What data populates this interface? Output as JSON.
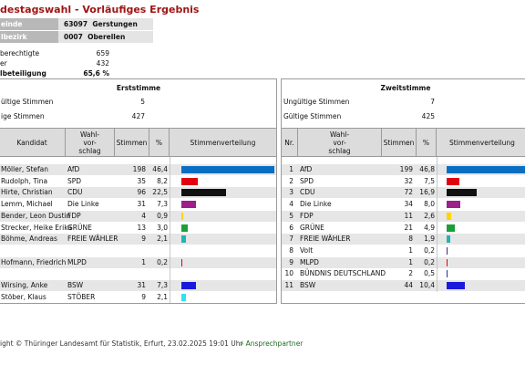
{
  "title": "destagswahl - Vorläufiges Ergebnis",
  "info": [
    {
      "label": "einde",
      "code": "63097",
      "name": "Gerstungen"
    },
    {
      "label": "lbezirk",
      "code": "0007",
      "name": "Oberellen"
    }
  ],
  "stats": [
    {
      "label": "berechtigte",
      "value": "659",
      "bold": false
    },
    {
      "label": "er",
      "value": "432",
      "bold": false
    },
    {
      "label": "lbeteiligung",
      "value": "65,6 %",
      "bold": true
    }
  ],
  "erststimme": {
    "title": "Erststimme",
    "invalid_label": "ültige Stimmen",
    "invalid_value": "5",
    "valid_label": "ige Stimmen",
    "valid_value": "427",
    "headers": {
      "kandidat": "Kandidat",
      "wahlvorschlag": [
        "Wahl-",
        "vor-",
        "schlag"
      ],
      "stimmen": "Stimmen",
      "prozent": "%",
      "verteilung": "Stimmenverteilung"
    },
    "rows": [
      {
        "kandidat": "Möller, Stefan",
        "partei": "AfD",
        "stimmen": "198",
        "prozent": "46,4",
        "pct": 46.4,
        "color": "#0a6fc2"
      },
      {
        "kandidat": "Rudolph, Tina",
        "partei": "SPD",
        "stimmen": "35",
        "prozent": "8,2",
        "pct": 8.2,
        "color": "#e3000f"
      },
      {
        "kandidat": "Hirte, Christian",
        "partei": "CDU",
        "stimmen": "96",
        "prozent": "22,5",
        "pct": 22.5,
        "color": "#111111"
      },
      {
        "kandidat": "Lemm, Michael",
        "partei": "Die Linke",
        "stimmen": "31",
        "prozent": "7,3",
        "pct": 7.3,
        "color": "#9c1f8a"
      },
      {
        "kandidat": "Bender, Leon Dustin",
        "partei": "FDP",
        "stimmen": "4",
        "prozent": "0,9",
        "pct": 0.9,
        "color": "#ffd400"
      },
      {
        "kandidat": "Strecker, Heike Erika",
        "partei": "GRÜNE",
        "stimmen": "13",
        "prozent": "3,0",
        "pct": 3.0,
        "color": "#1aa037"
      },
      {
        "kandidat": "Böhme, Andreas",
        "partei": "FREIE WÄHLER",
        "stimmen": "9",
        "prozent": "2,1",
        "pct": 2.1,
        "color": "#1fb5b0"
      },
      {
        "kandidat": "",
        "partei": "",
        "stimmen": "",
        "prozent": "",
        "pct": 0,
        "color": ""
      },
      {
        "kandidat": "Hofmann, Friedrich",
        "partei": "MLPD",
        "stimmen": "1",
        "prozent": "0,2",
        "pct": 0.2,
        "color": "#e3000f"
      },
      {
        "kandidat": "",
        "partei": "",
        "stimmen": "",
        "prozent": "",
        "pct": 0,
        "color": ""
      },
      {
        "kandidat": "Wirsing, Anke",
        "partei": "BSW",
        "stimmen": "31",
        "prozent": "7,3",
        "pct": 7.3,
        "color": "#1a1adc"
      },
      {
        "kandidat": "Stöber, Klaus",
        "partei": "STÖBER",
        "stimmen": "9",
        "prozent": "2,1",
        "pct": 2.1,
        "color": "#34e0f0"
      }
    ]
  },
  "zweitstimme": {
    "title": "Zweitstimme",
    "invalid_label": "Ungültige Stimmen",
    "invalid_value": "7",
    "valid_label": "Gültige Stimmen",
    "valid_value": "425",
    "headers": {
      "nr": "Nr.",
      "wahlvorschlag": [
        "Wahl-",
        "vor-",
        "schlag"
      ],
      "stimmen": "Stimmen",
      "prozent": "%",
      "verteilung": "Stimmenverteilung"
    },
    "rows": [
      {
        "nr": "1",
        "partei": "AfD",
        "stimmen": "199",
        "prozent": "46,8",
        "pct": 46.8,
        "color": "#0a6fc2"
      },
      {
        "nr": "2",
        "partei": "SPD",
        "stimmen": "32",
        "prozent": "7,5",
        "pct": 7.5,
        "color": "#e3000f"
      },
      {
        "nr": "3",
        "partei": "CDU",
        "stimmen": "72",
        "prozent": "16,9",
        "pct": 16.9,
        "color": "#111111"
      },
      {
        "nr": "4",
        "partei": "Die Linke",
        "stimmen": "34",
        "prozent": "8,0",
        "pct": 8.0,
        "color": "#9c1f8a"
      },
      {
        "nr": "5",
        "partei": "FDP",
        "stimmen": "11",
        "prozent": "2,6",
        "pct": 2.6,
        "color": "#ffd400"
      },
      {
        "nr": "6",
        "partei": "GRÜNE",
        "stimmen": "21",
        "prozent": "4,9",
        "pct": 4.9,
        "color": "#1aa037"
      },
      {
        "nr": "7",
        "partei": "FREIE WÄHLER",
        "stimmen": "8",
        "prozent": "1,9",
        "pct": 1.9,
        "color": "#1fb5b0"
      },
      {
        "nr": "8",
        "partei": "Volt",
        "stimmen": "1",
        "prozent": "0,2",
        "pct": 0.2,
        "color": "#502379"
      },
      {
        "nr": "9",
        "partei": "MLPD",
        "stimmen": "1",
        "prozent": "0,2",
        "pct": 0.2,
        "color": "#e3000f"
      },
      {
        "nr": "10",
        "partei": "BÜNDNIS DEUTSCHLAND",
        "stimmen": "2",
        "prozent": "0,5",
        "pct": 0.5,
        "color": "#1a3a8a"
      },
      {
        "nr": "11",
        "partei": "BSW",
        "stimmen": "44",
        "prozent": "10,4",
        "pct": 10.4,
        "color": "#1a1adc"
      }
    ]
  },
  "footer": {
    "copyright": "ight © Thüringer Landesamt für Statistik, Erfurt, 23.02.2025 19:01 Uhr",
    "link": "Ansprechpartner",
    "link_icon": "chevron-right-icon"
  }
}
